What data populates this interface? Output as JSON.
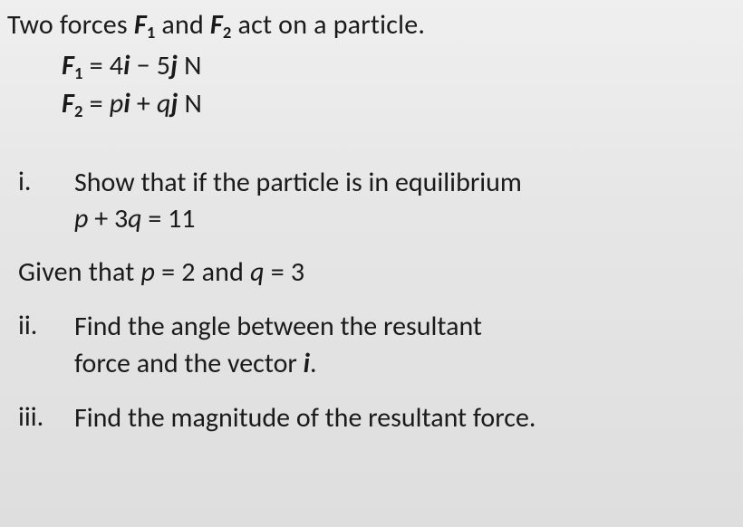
{
  "intro": {
    "prefix": "Two forces ",
    "F1_base": "F",
    "F1_sub": "1",
    "mid": " and ",
    "F2_base": "F",
    "F2_sub": "2",
    "suffix": " act on a particle."
  },
  "eq1": {
    "lhs_base": "F",
    "lhs_sub": "1",
    "eq": " = 4",
    "i": "i",
    "minus": " − 5",
    "j": "j",
    "unit": " N"
  },
  "eq2": {
    "lhs_base": "F",
    "lhs_sub": "2",
    "eq": " = ",
    "p": "p",
    "i": "i",
    "plus": " + ",
    "q": "q",
    "j": "j",
    "unit": " N"
  },
  "items": {
    "i_num": "i.",
    "i_text": "Show that  if the particle is in equilibrium",
    "i_eq_p": "p",
    "i_eq_mid": " + 3",
    "i_eq_q": "q",
    "i_eq_rhs": " = 11",
    "given_pre": "Given that  ",
    "given_p": "p",
    "given_p_val": " = 2 and ",
    "given_q": "q",
    "given_q_val": " = 3",
    "ii_num": "ii.",
    "ii_line1": "Find the angle between the resultant",
    "ii_line2_pre": "force and the vector ",
    "ii_line2_i": "i",
    "ii_line2_post": ".",
    "iii_num": "iii.",
    "iii_text": "Find the magnitude of the resultant force."
  }
}
